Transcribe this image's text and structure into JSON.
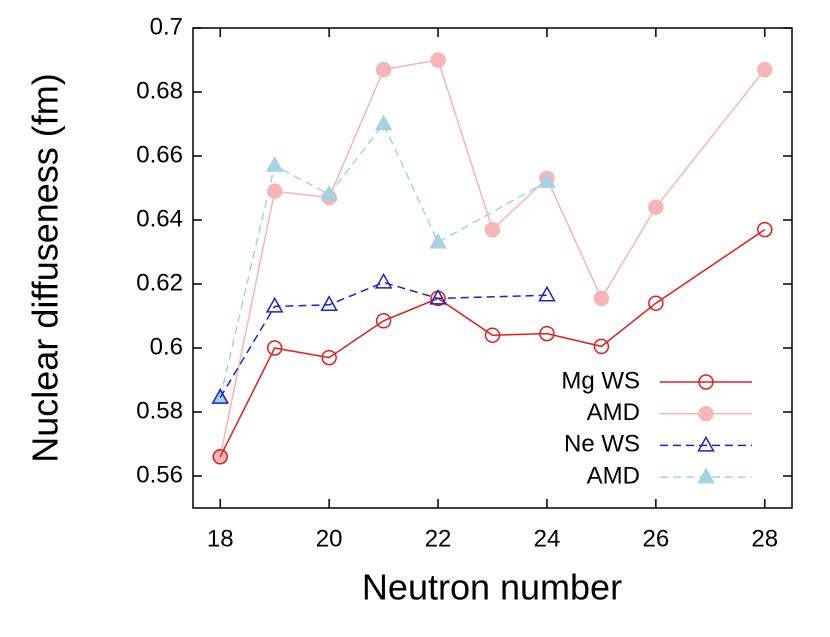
{
  "chart_data": {
    "type": "line",
    "x_label": "Neutron number",
    "y_label": "Nuclear diffuseness (fm)",
    "xlim": [
      17.5,
      28.5
    ],
    "xticks": [
      18,
      20,
      22,
      24,
      26,
      28
    ],
    "ylim": [
      0.55,
      0.7
    ],
    "yticks": [
      0.56,
      0.58,
      0.6,
      0.62,
      0.64,
      0.66,
      0.68,
      0.7
    ],
    "legend": "bottom-right",
    "series": [
      {
        "name": "Mg WS",
        "color": "#e0201b",
        "marker": "circle",
        "filled": false,
        "dashed": false,
        "x": [
          18,
          19,
          20,
          21,
          22,
          23,
          24,
          25,
          26,
          28
        ],
        "values": [
          0.566,
          0.6,
          0.597,
          0.6085,
          0.6155,
          0.604,
          0.6045,
          0.6005,
          0.614,
          0.637
        ]
      },
      {
        "name": "AMD",
        "color": "#f7b5b8",
        "marker": "circle",
        "filled": true,
        "dashed": false,
        "x": [
          18,
          19,
          20,
          21,
          22,
          23,
          24,
          25,
          26,
          28
        ],
        "values": [
          0.566,
          0.649,
          0.647,
          0.687,
          0.69,
          0.637,
          0.653,
          0.6155,
          0.644,
          0.687
        ]
      },
      {
        "name": "Ne WS",
        "color": "#1d22cc",
        "marker": "triangle",
        "filled": false,
        "dashed": true,
        "x": [
          18,
          19,
          20,
          21,
          22,
          24
        ],
        "values": [
          0.5845,
          0.613,
          0.6135,
          0.6205,
          0.6155,
          0.6165
        ]
      },
      {
        "name": "AMD",
        "color": "#a6d3e3",
        "marker": "triangle",
        "filled": true,
        "dashed": true,
        "x": [
          18,
          19,
          20,
          21,
          22,
          24
        ],
        "values": [
          0.5845,
          0.657,
          0.648,
          0.67,
          0.633,
          0.652
        ]
      }
    ]
  }
}
